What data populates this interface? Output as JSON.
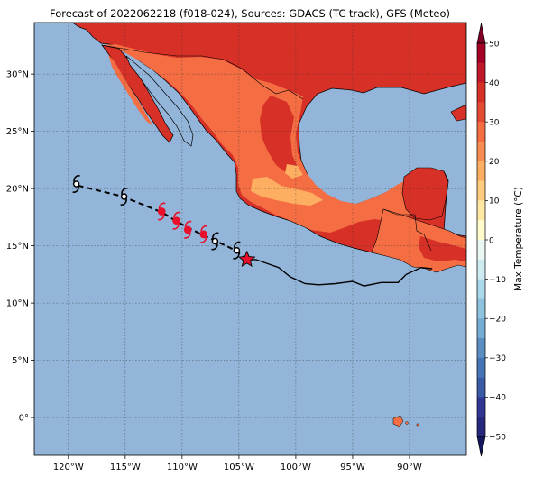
{
  "title": "Forecast of 2022062218 (f018-024), Sources: GDACS (TC track), GFS (Meteo)",
  "map": {
    "lon_range": [
      -123,
      -85
    ],
    "lat_range": [
      -3.3,
      34.5
    ],
    "x_ticks": [
      {
        "lon": -120,
        "label": "120°W"
      },
      {
        "lon": -115,
        "label": "115°W"
      },
      {
        "lon": -110,
        "label": "110°W"
      },
      {
        "lon": -105,
        "label": "105°W"
      },
      {
        "lon": -100,
        "label": "100°W"
      },
      {
        "lon": -95,
        "label": "95°W"
      },
      {
        "lon": -90,
        "label": "90°W"
      }
    ],
    "y_ticks": [
      {
        "lat": 30,
        "label": "30°N"
      },
      {
        "lat": 25,
        "label": "25°N"
      },
      {
        "lat": 20,
        "label": "20°N"
      },
      {
        "lat": 15,
        "label": "15°N"
      },
      {
        "lat": 10,
        "label": "10°N"
      },
      {
        "lat": 5,
        "label": "5°N"
      },
      {
        "lat": 0,
        "label": "0°"
      }
    ],
    "gridlines": true,
    "colors": {
      "ocean": "#92b5d9",
      "land_hot": "#d73027",
      "land_warm": "#f46d43",
      "land_mild": "#fdae61",
      "track_marker": "#e8102a",
      "current_position": "#e8102a"
    }
  },
  "track": {
    "past_track": [
      [
        -88,
        13
      ],
      [
        -89,
        13.1
      ],
      [
        -90.3,
        12.5
      ],
      [
        -91,
        11.8
      ],
      [
        -92.5,
        11.8
      ],
      [
        -94,
        11.5
      ],
      [
        -95,
        11.9
      ],
      [
        -96.5,
        11.7
      ],
      [
        -98,
        11.6
      ],
      [
        -99.2,
        11.7
      ],
      [
        -100.5,
        12.3
      ],
      [
        -101.5,
        13.1
      ],
      [
        -103.5,
        13.8
      ],
      [
        -104.3,
        13.8
      ]
    ],
    "forecast_track": [
      [
        -104.3,
        13.8
      ],
      [
        -105.3,
        14.6
      ],
      [
        -107,
        15.4
      ],
      [
        -108.3,
        16
      ],
      [
        -109.5,
        16.6
      ],
      [
        -110.6,
        17.2
      ],
      [
        -111.7,
        17.9
      ],
      [
        -115.2,
        19.3
      ],
      [
        -119.3,
        20.3
      ]
    ],
    "current_position": {
      "lon": -104.3,
      "lat": 13.8
    },
    "storm_symbols": [
      {
        "lon": -105.2,
        "lat": 14.6,
        "category": "storm"
      },
      {
        "lon": -107.1,
        "lat": 15.4,
        "category": "storm"
      },
      {
        "lon": -108.1,
        "lat": 16.0,
        "category": "hurricane"
      },
      {
        "lon": -109.5,
        "lat": 16.4,
        "category": "hurricane"
      },
      {
        "lon": -110.5,
        "lat": 17.2,
        "category": "hurricane"
      },
      {
        "lon": -111.8,
        "lat": 18.0,
        "category": "hurricane"
      },
      {
        "lon": -115.1,
        "lat": 19.3,
        "category": "storm"
      },
      {
        "lon": -119.3,
        "lat": 20.4,
        "category": "storm"
      }
    ]
  },
  "colorbar": {
    "label": "Max Temperature (°C)",
    "range": [
      -50,
      50
    ],
    "ticks": [
      50,
      40,
      30,
      20,
      10,
      0,
      -10,
      -20,
      -30,
      -40,
      -50
    ],
    "levels": [
      {
        "from": 45,
        "to": 50,
        "color": "#a50026"
      },
      {
        "from": 40,
        "to": 45,
        "color": "#c0172b"
      },
      {
        "from": 35,
        "to": 40,
        "color": "#d73027"
      },
      {
        "from": 30,
        "to": 35,
        "color": "#e34a33"
      },
      {
        "from": 25,
        "to": 30,
        "color": "#f46d43"
      },
      {
        "from": 20,
        "to": 25,
        "color": "#f88d52"
      },
      {
        "from": 15,
        "to": 20,
        "color": "#fdae61"
      },
      {
        "from": 10,
        "to": 15,
        "color": "#fecc7c"
      },
      {
        "from": 5,
        "to": 10,
        "color": "#fee8a4"
      },
      {
        "from": 0,
        "to": 5,
        "color": "#fffbcd"
      },
      {
        "from": -5,
        "to": 0,
        "color": "#eaf7f4"
      },
      {
        "from": -10,
        "to": -5,
        "color": "#cfebf2"
      },
      {
        "from": -15,
        "to": -10,
        "color": "#abd9e9"
      },
      {
        "from": -20,
        "to": -15,
        "color": "#8fc3dd"
      },
      {
        "from": -25,
        "to": -20,
        "color": "#74add1"
      },
      {
        "from": -30,
        "to": -25,
        "color": "#5b8fc2"
      },
      {
        "from": -35,
        "to": -30,
        "color": "#4575b4"
      },
      {
        "from": -40,
        "to": -35,
        "color": "#3a5aa5"
      },
      {
        "from": -45,
        "to": -40,
        "color": "#313695"
      },
      {
        "from": -50,
        "to": -45,
        "color": "#25287d"
      }
    ],
    "extend_top_color": "#800026",
    "extend_bottom_color": "#141660"
  }
}
